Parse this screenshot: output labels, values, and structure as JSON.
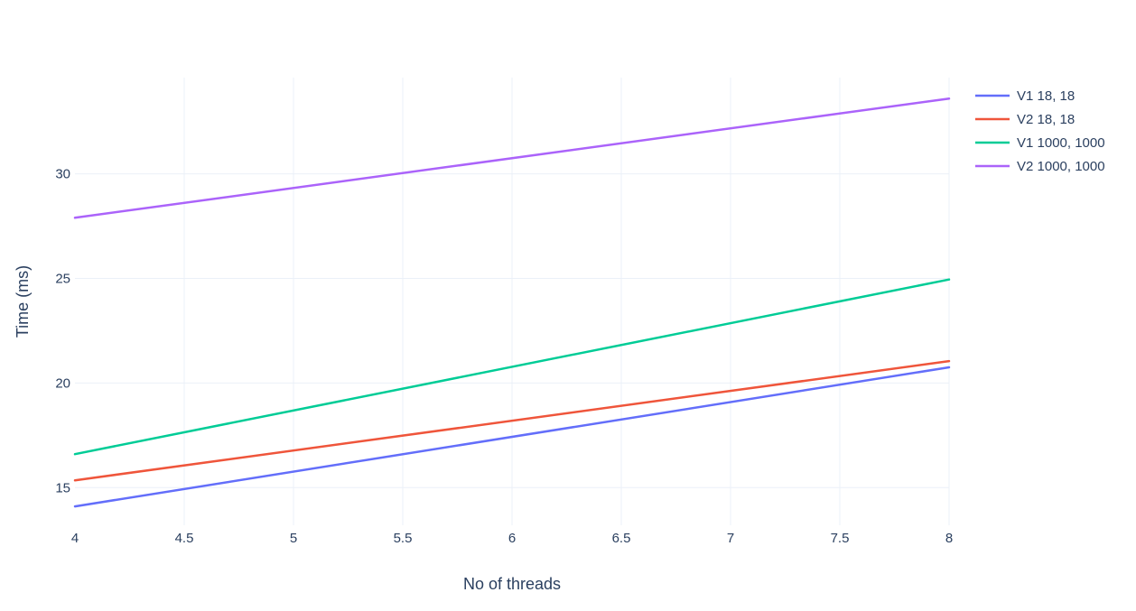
{
  "chart_data": {
    "type": "line",
    "title": "",
    "xlabel": "No of threads",
    "ylabel": "Time (ms)",
    "xlim": [
      4,
      8
    ],
    "ylim": [
      13.2,
      34.6
    ],
    "x_ticks": [
      4,
      4.5,
      5,
      5.5,
      6,
      6.5,
      7,
      7.5,
      8
    ],
    "x_tick_labels": [
      "4",
      "4.5",
      "5",
      "5.5",
      "6",
      "6.5",
      "7",
      "7.5",
      "8"
    ],
    "y_ticks": [
      15,
      20,
      25,
      30
    ],
    "y_tick_labels": [
      "15",
      "20",
      "25",
      "30"
    ],
    "grid": true,
    "legend_position": "top-right",
    "x": [
      4,
      8
    ],
    "series": [
      {
        "name": "V1 18, 18",
        "color": "#636efa",
        "values": [
          14.1,
          20.75
        ]
      },
      {
        "name": "V2 18, 18",
        "color": "#ef553b",
        "values": [
          15.35,
          21.05
        ]
      },
      {
        "name": "V1 1000, 1000",
        "color": "#00cc96",
        "values": [
          16.6,
          24.95
        ]
      },
      {
        "name": "V2 1000, 1000",
        "color": "#ab63fa",
        "values": [
          27.9,
          33.6
        ]
      }
    ]
  }
}
